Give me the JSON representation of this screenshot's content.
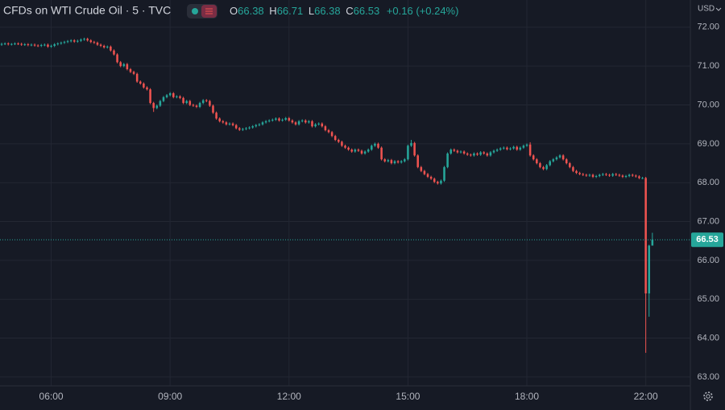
{
  "chart_data": {
    "type": "candlestick",
    "title": "CFDs on WTI Crude Oil · 5 · TVC",
    "currency": "USD",
    "ohlc_labels": [
      "O",
      "H",
      "L",
      "C"
    ],
    "change": "+0.16 (+0.24%)",
    "up_color": "#26a69a",
    "down_color": "#ef5350",
    "grid": true,
    "xlim": [
      -0.5,
      208.5
    ],
    "xticks": [
      {
        "value": 15,
        "label": "06:00"
      },
      {
        "value": 51,
        "label": "09:00"
      },
      {
        "value": 87,
        "label": "12:00"
      },
      {
        "value": 123,
        "label": "15:00"
      },
      {
        "value": 159,
        "label": "18:00"
      },
      {
        "value": 195,
        "label": "22:00"
      }
    ],
    "ylim": [
      62.77,
      72.7
    ],
    "yticks": [
      {
        "value": 63,
        "label": "63.00"
      },
      {
        "value": 64,
        "label": "64.00"
      },
      {
        "value": 65,
        "label": "65.00"
      },
      {
        "value": 66,
        "label": "66.00"
      },
      {
        "value": 67,
        "label": "67.00"
      },
      {
        "value": 68,
        "label": "68.00"
      },
      {
        "value": 69,
        "label": "69.00"
      },
      {
        "value": 70,
        "label": "70.00"
      },
      {
        "value": 71,
        "label": "71.00"
      },
      {
        "value": 72,
        "label": "72.00"
      }
    ],
    "open": [
      71.55,
      71.57,
      71.58,
      71.56,
      71.57,
      71.58,
      71.57,
      71.55,
      71.56,
      71.54,
      71.55,
      71.53,
      71.52,
      71.54,
      71.55,
      71.5,
      71.52,
      71.56,
      71.58,
      71.6,
      71.62,
      71.64,
      71.66,
      71.63,
      71.65,
      71.68,
      71.7,
      71.66,
      71.62,
      71.6,
      71.55,
      71.52,
      71.48,
      71.5,
      71.4,
      71.3,
      71.1,
      71.0,
      71.05,
      70.92,
      70.85,
      70.8,
      70.6,
      70.55,
      70.45,
      70.4,
      70.05,
      69.92,
      69.98,
      70.1,
      70.2,
      70.25,
      70.3,
      70.2,
      70.22,
      70.18,
      70.05,
      70.1,
      70.0,
      69.98,
      69.95,
      70.05,
      70.12,
      70.1,
      69.98,
      69.8,
      69.65,
      69.58,
      69.55,
      69.5,
      69.52,
      69.48,
      69.4,
      69.36,
      69.38,
      69.4,
      69.42,
      69.45,
      69.48,
      69.5,
      69.55,
      69.58,
      69.6,
      69.62,
      69.65,
      69.6,
      69.62,
      69.66,
      69.6,
      69.55,
      69.5,
      69.58,
      69.6,
      69.55,
      69.58,
      69.45,
      69.5,
      69.52,
      69.45,
      69.35,
      69.3,
      69.2,
      69.1,
      69.05,
      68.95,
      68.9,
      68.85,
      68.8,
      68.85,
      68.82,
      68.75,
      68.8,
      68.85,
      68.95,
      69.0,
      68.9,
      68.6,
      68.55,
      68.58,
      68.5,
      68.55,
      68.52,
      68.55,
      68.6,
      68.95,
      69.02,
      68.7,
      68.4,
      68.3,
      68.22,
      68.15,
      68.1,
      68.02,
      67.98,
      68.05,
      68.4,
      68.75,
      68.85,
      68.82,
      68.78,
      68.8,
      68.75,
      68.72,
      68.7,
      68.75,
      68.72,
      68.78,
      68.75,
      68.7,
      68.78,
      68.82,
      68.85,
      68.88,
      68.9,
      68.86,
      68.88,
      68.92,
      68.85,
      68.9,
      68.95,
      68.98,
      68.7,
      68.6,
      68.5,
      68.4,
      68.35,
      68.45,
      68.55,
      68.6,
      68.65,
      68.7,
      68.6,
      68.5,
      68.4,
      68.3,
      68.25,
      68.22,
      68.2,
      68.18,
      68.2,
      68.15,
      68.17,
      68.2,
      68.22,
      68.2,
      68.18,
      68.22,
      68.2,
      68.18,
      68.15,
      68.17,
      68.2,
      68.18,
      68.16,
      68.12,
      68.12,
      65.15,
      66.38
    ],
    "high": [
      71.6,
      71.61,
      71.61,
      71.59,
      71.61,
      71.61,
      71.6,
      71.59,
      71.59,
      71.58,
      71.58,
      71.56,
      71.57,
      71.58,
      71.58,
      71.55,
      71.59,
      71.61,
      71.63,
      71.65,
      71.67,
      71.69,
      71.69,
      71.68,
      71.71,
      71.73,
      71.73,
      71.69,
      71.65,
      71.63,
      71.58,
      71.55,
      71.53,
      71.53,
      71.43,
      71.33,
      71.13,
      71.08,
      71.08,
      70.95,
      70.88,
      70.83,
      70.63,
      70.58,
      70.48,
      70.43,
      70.08,
      70.01,
      70.13,
      70.23,
      70.28,
      70.33,
      70.33,
      70.25,
      70.25,
      70.21,
      70.13,
      70.13,
      70.03,
      70.01,
      70.08,
      70.15,
      70.15,
      70.13,
      70.01,
      69.83,
      69.68,
      69.61,
      69.58,
      69.55,
      69.55,
      69.51,
      69.43,
      69.41,
      69.43,
      69.45,
      69.48,
      69.51,
      69.53,
      69.58,
      69.61,
      69.63,
      69.65,
      69.68,
      69.68,
      69.65,
      69.69,
      69.69,
      69.63,
      69.58,
      69.61,
      69.63,
      69.63,
      69.61,
      69.61,
      69.53,
      69.55,
      69.55,
      69.48,
      69.38,
      69.33,
      69.23,
      69.13,
      69.08,
      68.98,
      68.93,
      68.88,
      68.88,
      68.88,
      68.85,
      68.83,
      68.88,
      68.98,
      69.03,
      69.03,
      68.93,
      68.63,
      68.61,
      68.61,
      68.58,
      68.58,
      68.58,
      68.63,
      68.98,
      69.1,
      69.05,
      68.73,
      68.43,
      68.33,
      68.25,
      68.18,
      68.13,
      68.05,
      68.08,
      68.43,
      68.78,
      68.88,
      68.88,
      68.85,
      68.83,
      68.83,
      68.78,
      68.75,
      68.78,
      68.78,
      68.81,
      68.81,
      68.78,
      68.81,
      68.85,
      68.88,
      68.91,
      68.93,
      68.93,
      68.91,
      68.95,
      68.95,
      68.93,
      68.98,
      69.01,
      69.04,
      68.73,
      68.63,
      68.53,
      68.43,
      68.48,
      68.58,
      68.63,
      68.68,
      68.73,
      68.73,
      68.63,
      68.53,
      68.43,
      68.33,
      68.28,
      68.25,
      68.23,
      68.23,
      68.23,
      68.2,
      68.23,
      68.25,
      68.25,
      68.23,
      68.25,
      68.25,
      68.23,
      68.21,
      68.2,
      68.23,
      68.23,
      68.21,
      68.19,
      68.15,
      68.15,
      66.4,
      66.71
    ],
    "low": [
      71.52,
      71.54,
      71.53,
      71.53,
      71.54,
      71.54,
      71.52,
      71.52,
      71.51,
      71.51,
      71.5,
      71.49,
      71.49,
      71.51,
      71.47,
      71.47,
      71.49,
      71.53,
      71.55,
      71.57,
      71.59,
      71.61,
      71.6,
      71.6,
      71.62,
      71.65,
      71.63,
      71.59,
      71.57,
      71.52,
      71.49,
      71.45,
      71.45,
      71.37,
      71.27,
      71.07,
      70.97,
      70.97,
      70.89,
      70.82,
      70.77,
      70.57,
      70.52,
      70.42,
      70.37,
      70.02,
      69.82,
      69.89,
      69.95,
      70.07,
      70.17,
      70.22,
      70.17,
      70.17,
      70.15,
      70.02,
      70.02,
      69.97,
      69.95,
      69.92,
      69.92,
      70.02,
      70.07,
      69.95,
      69.77,
      69.62,
      69.55,
      69.52,
      69.47,
      69.47,
      69.45,
      69.37,
      69.33,
      69.33,
      69.35,
      69.37,
      69.39,
      69.42,
      69.45,
      69.47,
      69.52,
      69.55,
      69.57,
      69.59,
      69.57,
      69.57,
      69.59,
      69.57,
      69.52,
      69.47,
      69.47,
      69.55,
      69.52,
      69.52,
      69.42,
      69.42,
      69.47,
      69.42,
      69.32,
      69.27,
      69.17,
      69.07,
      69.02,
      68.92,
      68.87,
      68.82,
      68.77,
      68.77,
      68.79,
      68.72,
      68.72,
      68.77,
      68.82,
      68.92,
      68.87,
      68.57,
      68.52,
      68.52,
      68.47,
      68.47,
      68.49,
      68.49,
      68.52,
      68.57,
      68.92,
      68.67,
      68.37,
      68.27,
      68.19,
      68.12,
      68.07,
      67.99,
      67.95,
      67.95,
      68.02,
      68.37,
      68.72,
      68.79,
      68.75,
      68.75,
      68.72,
      68.69,
      68.67,
      68.67,
      68.69,
      68.69,
      68.72,
      68.67,
      68.67,
      68.75,
      68.79,
      68.82,
      68.85,
      68.83,
      68.83,
      68.85,
      68.82,
      68.82,
      68.87,
      68.92,
      68.67,
      68.57,
      68.47,
      68.37,
      68.32,
      68.32,
      68.42,
      68.52,
      68.57,
      68.62,
      68.57,
      68.47,
      68.37,
      68.27,
      68.22,
      68.19,
      68.17,
      68.15,
      68.15,
      68.12,
      68.12,
      68.14,
      68.17,
      68.17,
      68.15,
      68.15,
      68.17,
      68.15,
      68.12,
      68.12,
      68.14,
      68.15,
      68.13,
      68.09,
      68.09,
      63.62,
      64.55,
      66.38
    ],
    "close": [
      71.57,
      71.58,
      71.56,
      71.57,
      71.58,
      71.57,
      71.55,
      71.56,
      71.54,
      71.55,
      71.53,
      71.52,
      71.54,
      71.55,
      71.5,
      71.52,
      71.56,
      71.58,
      71.6,
      71.62,
      71.64,
      71.66,
      71.63,
      71.65,
      71.68,
      71.7,
      71.66,
      71.62,
      71.6,
      71.55,
      71.52,
      71.48,
      71.5,
      71.4,
      71.3,
      71.1,
      71.0,
      71.05,
      70.92,
      70.85,
      70.8,
      70.6,
      70.55,
      70.45,
      70.4,
      70.05,
      69.92,
      69.98,
      70.1,
      70.2,
      70.25,
      70.3,
      70.2,
      70.22,
      70.18,
      70.05,
      70.1,
      70.0,
      69.98,
      69.95,
      70.05,
      70.12,
      70.1,
      69.98,
      69.8,
      69.65,
      69.58,
      69.55,
      69.5,
      69.52,
      69.48,
      69.4,
      69.36,
      69.38,
      69.4,
      69.42,
      69.45,
      69.48,
      69.5,
      69.55,
      69.58,
      69.6,
      69.62,
      69.65,
      69.6,
      69.62,
      69.66,
      69.6,
      69.55,
      69.5,
      69.58,
      69.6,
      69.55,
      69.58,
      69.45,
      69.5,
      69.52,
      69.45,
      69.35,
      69.3,
      69.2,
      69.1,
      69.05,
      68.95,
      68.9,
      68.85,
      68.8,
      68.85,
      68.82,
      68.75,
      68.8,
      68.85,
      68.95,
      69.0,
      68.9,
      68.6,
      68.55,
      68.58,
      68.5,
      68.55,
      68.52,
      68.55,
      68.6,
      68.95,
      69.02,
      68.7,
      68.4,
      68.3,
      68.22,
      68.15,
      68.1,
      68.02,
      67.98,
      68.05,
      68.4,
      68.75,
      68.85,
      68.82,
      68.78,
      68.8,
      68.75,
      68.72,
      68.7,
      68.75,
      68.72,
      68.78,
      68.75,
      68.7,
      68.78,
      68.82,
      68.85,
      68.88,
      68.9,
      68.86,
      68.88,
      68.92,
      68.85,
      68.9,
      68.95,
      68.98,
      68.7,
      68.6,
      68.5,
      68.4,
      68.35,
      68.45,
      68.55,
      68.6,
      68.65,
      68.7,
      68.6,
      68.5,
      68.4,
      68.3,
      68.25,
      68.22,
      68.2,
      68.18,
      68.2,
      68.15,
      68.17,
      68.2,
      68.22,
      68.2,
      68.18,
      68.22,
      68.2,
      68.18,
      68.15,
      68.17,
      68.2,
      68.18,
      68.16,
      68.12,
      68.12,
      65.15,
      66.38,
      66.53
    ]
  }
}
